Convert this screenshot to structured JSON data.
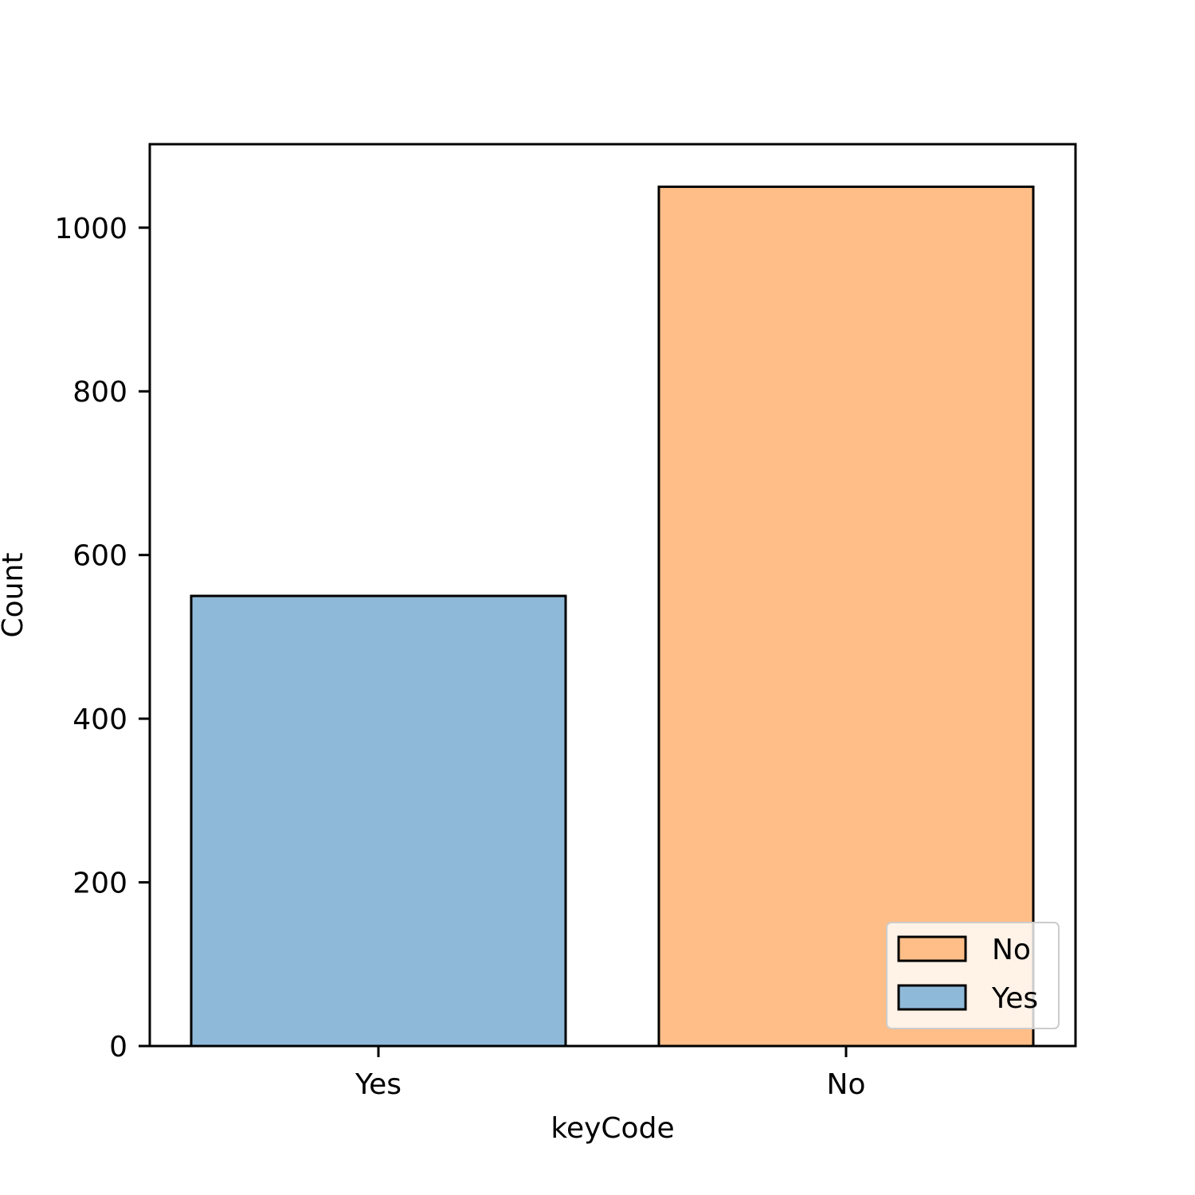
{
  "chart_data": {
    "type": "bar",
    "categories": [
      "Yes",
      "No"
    ],
    "values": [
      550,
      1050
    ],
    "colors": [
      "#8fb9d9",
      "#ffbe87"
    ],
    "xlabel": "keyCode",
    "ylabel": "Count",
    "ylim": [
      0,
      1102
    ],
    "yticks": [
      0,
      200,
      400,
      600,
      800,
      1000
    ],
    "ytick_labels": [
      "0",
      "200",
      "400",
      "600",
      "800",
      "1000"
    ],
    "grid": false,
    "legend": {
      "placement": "lower-right",
      "entries": [
        {
          "label": "No",
          "color": "#ffbe87"
        },
        {
          "label": "Yes",
          "color": "#8fb9d9"
        }
      ]
    }
  }
}
